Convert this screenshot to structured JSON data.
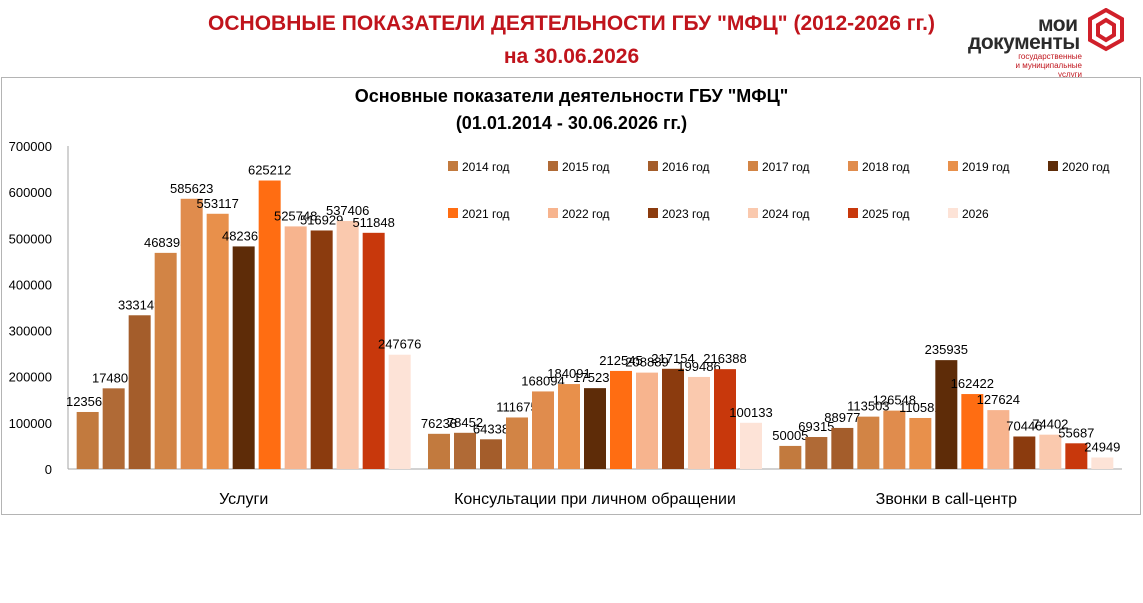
{
  "header": {
    "title_line1": "ОСНОВНЫЕ ПОКАЗАТЕЛИ ДЕЯТЕЛЬНОСТИ ГБУ  \"МФЦ\" (2012-2026 гг.)",
    "title_line2": "на 30.06.2026",
    "logo_word1": "мои",
    "logo_word2": "документы",
    "logo_sub1": "государственные",
    "logo_sub2": "и муниципальные услуги"
  },
  "colors": {
    "title_red": "#c0141c",
    "series": [
      "#c27a3e",
      "#b06a36",
      "#a45d2b",
      "#d28445",
      "#e08c4d",
      "#e8904b",
      "#5e2c08",
      "#ff6d12",
      "#f7b48e",
      "#8b3b0e",
      "#fac9ae",
      "#c8380c",
      "#fde3d7"
    ]
  },
  "chart_data": {
    "type": "bar",
    "title_line1": "Основные показатели деятельности ГБУ \"МФЦ\"",
    "title_line2": "(01.01.2014  - 30.06.2026  гг.)",
    "categories": [
      "Услуги",
      "Консультации при личном обращении",
      "Звонки в call-центр"
    ],
    "ylim": [
      0,
      700000
    ],
    "yticks": [
      0,
      100000,
      200000,
      300000,
      400000,
      500000,
      600000,
      700000
    ],
    "grid": false,
    "legend_position": "top-right",
    "series": [
      {
        "name": "2014  год",
        "values": [
          123563,
          76238,
          50005
        ]
      },
      {
        "name": "2015  год",
        "values": [
          174806,
          78452,
          69315
        ]
      },
      {
        "name": "2016  год",
        "values": [
          333149,
          64338,
          88977
        ]
      },
      {
        "name": "2017  год",
        "values": [
          468395,
          111675,
          113503
        ]
      },
      {
        "name": "2018  год",
        "values": [
          585623,
          168094,
          126548
        ]
      },
      {
        "name": "2019  год",
        "values": [
          553117,
          184091,
          110581
        ]
      },
      {
        "name": "2020  год",
        "values": [
          482367,
          175230,
          235935
        ]
      },
      {
        "name": "2021  год",
        "values": [
          625212,
          212545,
          162422
        ]
      },
      {
        "name": "2022  год",
        "values": [
          525748,
          208889,
          127624
        ]
      },
      {
        "name": "2023  год",
        "values": [
          516929,
          217154,
          70446
        ]
      },
      {
        "name": "2024  год",
        "values": [
          537406,
          199486,
          74402
        ]
      },
      {
        "name": "2025  год",
        "values": [
          511848,
          216388,
          55687
        ]
      },
      {
        "name": "2026",
        "values": [
          247676,
          100133,
          24949
        ]
      }
    ]
  }
}
